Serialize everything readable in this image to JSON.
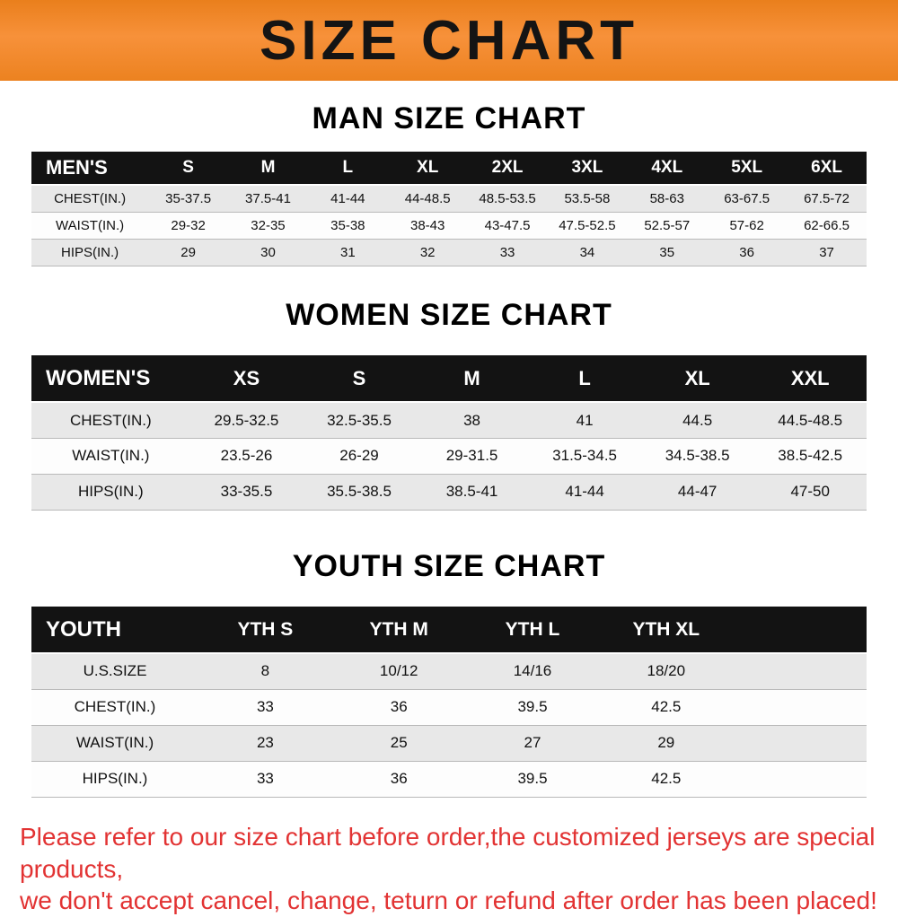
{
  "banner": {
    "title": "SIZE CHART",
    "bg_color": "#f0861f",
    "text_color": "#141414"
  },
  "colors": {
    "table_header_bg": "#131313",
    "table_header_text": "#ffffff",
    "row_alt_gray": "#e8e8e8",
    "notice_red": "#e23333"
  },
  "sections": [
    {
      "heading": "MAN SIZE CHART",
      "table": {
        "header": [
          "MEN'S",
          "S",
          "M",
          "L",
          "XL",
          "2XL",
          "3XL",
          "4XL",
          "5XL",
          "6XL"
        ],
        "rows": [
          [
            "CHEST(IN.)",
            "35-37.5",
            "37.5-41",
            "41-44",
            "44-48.5",
            "48.5-53.5",
            "53.5-58",
            "58-63",
            "63-67.5",
            "67.5-72"
          ],
          [
            "WAIST(IN.)",
            "29-32",
            "32-35",
            "35-38",
            "38-43",
            "43-47.5",
            "47.5-52.5",
            "52.5-57",
            "57-62",
            "62-66.5"
          ],
          [
            "HIPS(IN.)",
            "29",
            "30",
            "31",
            "32",
            "33",
            "34",
            "35",
            "36",
            "37"
          ]
        ]
      }
    },
    {
      "heading": "WOMEN SIZE CHART",
      "table": {
        "header": [
          "WOMEN'S",
          "XS",
          "S",
          "M",
          "L",
          "XL",
          "XXL"
        ],
        "rows": [
          [
            "CHEST(IN.)",
            "29.5-32.5",
            "32.5-35.5",
            "38",
            "41",
            "44.5",
            "44.5-48.5"
          ],
          [
            "WAIST(IN.)",
            "23.5-26",
            "26-29",
            "29-31.5",
            "31.5-34.5",
            "34.5-38.5",
            "38.5-42.5"
          ],
          [
            "HIPS(IN.)",
            "33-35.5",
            "35.5-38.5",
            "38.5-41",
            "41-44",
            "44-47",
            "47-50"
          ]
        ]
      }
    },
    {
      "heading": "YOUTH SIZE CHART",
      "table": {
        "header": [
          "YOUTH",
          "YTH S",
          "YTH M",
          "YTH L",
          "YTH XL",
          ""
        ],
        "rows": [
          [
            "U.S.SIZE",
            "8",
            "10/12",
            "14/16",
            "18/20",
            ""
          ],
          [
            "CHEST(IN.)",
            "33",
            "36",
            "39.5",
            "42.5",
            ""
          ],
          [
            "WAIST(IN.)",
            "23",
            "25",
            "27",
            "29",
            ""
          ],
          [
            "HIPS(IN.)",
            "33",
            "36",
            "39.5",
            "42.5",
            ""
          ]
        ]
      }
    }
  ],
  "footer": {
    "line1": "Please refer to our size chart before order,the customized jerseys are special products,",
    "line2": "we don't accept cancel, change, teturn or refund after order has been placed!"
  }
}
